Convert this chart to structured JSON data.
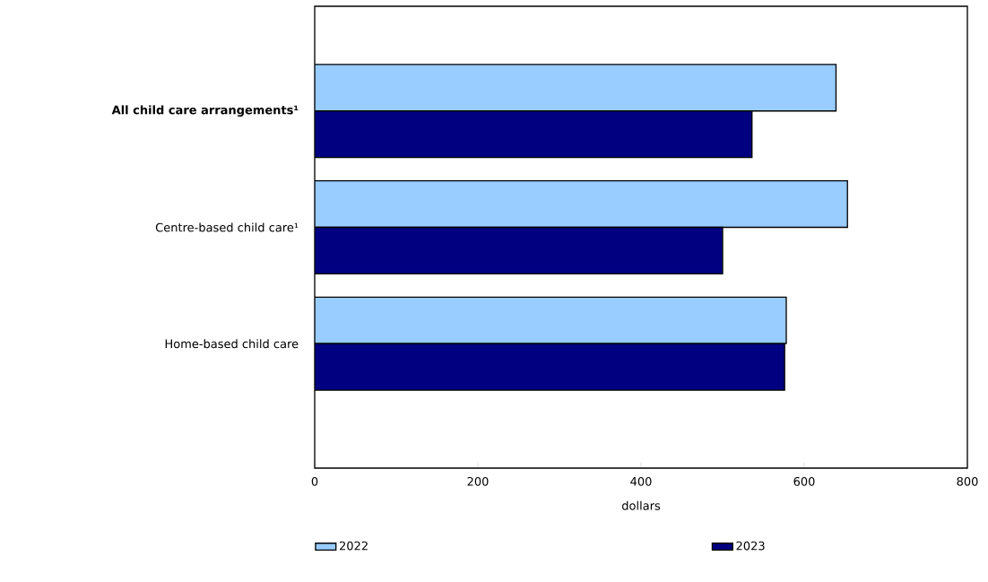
{
  "chart_data": {
    "type": "bar",
    "orientation": "horizontal",
    "xlabel": "dollars",
    "categories": [
      "All child care arrangements¹",
      "Centre-based child care¹",
      "Home-based child care"
    ],
    "series": [
      {
        "name": "2022",
        "color": "#99ccff",
        "values": [
          639,
          653,
          578
        ]
      },
      {
        "name": "2023",
        "color": "#000080",
        "values": [
          536,
          500,
          576
        ]
      }
    ],
    "xlim": [
      0,
      800
    ],
    "xticks": [
      0,
      200,
      400,
      600,
      800
    ],
    "grid": false,
    "legend": "bottom"
  }
}
